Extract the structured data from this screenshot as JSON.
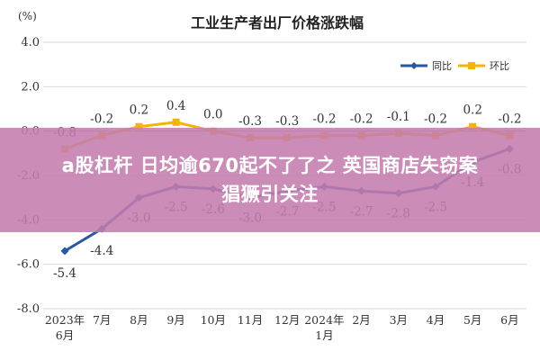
{
  "chart_data": {
    "type": "line",
    "title": "工业生产者出厂价格涨跌幅",
    "unit_label": "(%)",
    "categories": [
      [
        "2023年",
        "6月"
      ],
      [
        "7月"
      ],
      [
        "8月"
      ],
      [
        "9月"
      ],
      [
        "10月"
      ],
      [
        "11月"
      ],
      [
        "12月"
      ],
      [
        "2024年",
        "1月"
      ],
      [
        "2月"
      ],
      [
        "3月"
      ],
      [
        "4月"
      ],
      [
        "5月"
      ],
      [
        "6月"
      ]
    ],
    "ylim": [
      -8.0,
      4.0
    ],
    "yticks": [
      "-8.0",
      "-6.0",
      "-4.0",
      "-2.0",
      "0.0",
      "2.0",
      "4.0"
    ],
    "grid": true,
    "legend_position": "top-right",
    "series": [
      {
        "name": "同比",
        "color": "#2757a3",
        "values": [
          -5.4,
          -4.4,
          -3.0,
          -2.5,
          -2.6,
          -3.0,
          -2.7,
          -2.5,
          -2.7,
          -2.8,
          -2.5,
          -1.4,
          -0.8
        ],
        "labels": [
          "-5.4",
          "-4.4",
          "-3.0",
          "-2.5",
          "-2.6",
          "-3.0",
          "-2.7",
          "-2.5",
          "-2.7",
          "-2.8",
          "-2.5",
          "-1.4",
          "-0.8"
        ]
      },
      {
        "name": "环比",
        "color": "#f4b400",
        "values": [
          -0.8,
          -0.2,
          0.2,
          0.4,
          0.0,
          -0.3,
          -0.3,
          -0.2,
          -0.2,
          -0.1,
          -0.2,
          0.2,
          -0.2
        ],
        "labels": [
          "-0.8",
          "-0.2",
          "0.2",
          "0.4",
          "0.0",
          "-0.3",
          "-0.3",
          "-0.2",
          "-0.2",
          "-0.1",
          "-0.2",
          "0.2",
          "-0.2"
        ]
      }
    ]
  },
  "overlay": {
    "line1": "a股杠杆 日均逾670起不了了之 英国商店失窃案",
    "line2": "猖獗引关注",
    "color": "#c47cae"
  }
}
